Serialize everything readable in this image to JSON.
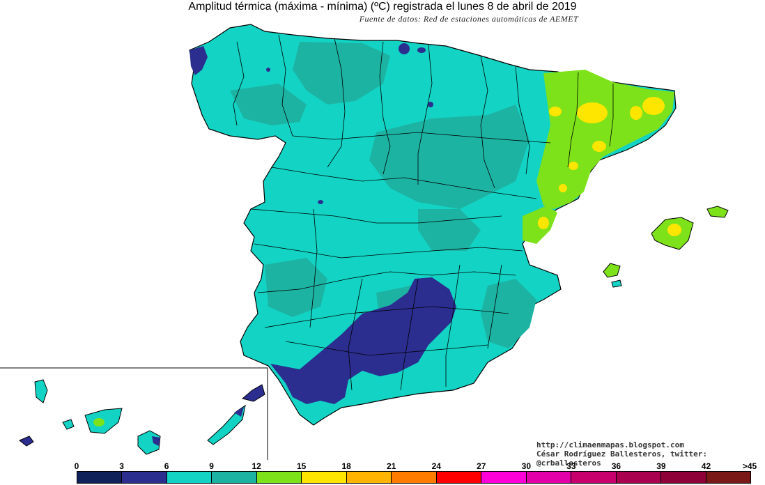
{
  "title": "Amplitud térmica (máxima - mínima) (ºC) registrada el lunes 8 de abril de 2019",
  "subtitle": "Fuente de datos: Red de estaciones automáticas de AEMET",
  "credits": {
    "blog": "http://climaenmapas.blogspot.com",
    "author": "César Rodríguez Ballesteros, twitter: @crballesteros"
  },
  "legend": {
    "ticks": [
      "0",
      "3",
      "6",
      "9",
      "12",
      "15",
      "18",
      "21",
      "24",
      "27",
      "30",
      "33",
      "36",
      "39",
      "42",
      ">45"
    ],
    "colors": [
      "#102058",
      "#2b2d8f",
      "#12d3c4",
      "#1db3a3",
      "#7ee21a",
      "#ffe600",
      "#ffb400",
      "#ff7c00",
      "#ff0000",
      "#ff00d8",
      "#e400a8",
      "#c8006e",
      "#aa0050",
      "#8e0038",
      "#7a1818"
    ]
  },
  "map_colors": {
    "range_0_3": "#102058",
    "range_3_6": "#2b2d8f",
    "range_6_9": "#12d3c4",
    "range_9_12": "#1db3a3",
    "range_12_15": "#7ee21a",
    "range_15_18": "#ffe600",
    "borders": "#000000"
  }
}
